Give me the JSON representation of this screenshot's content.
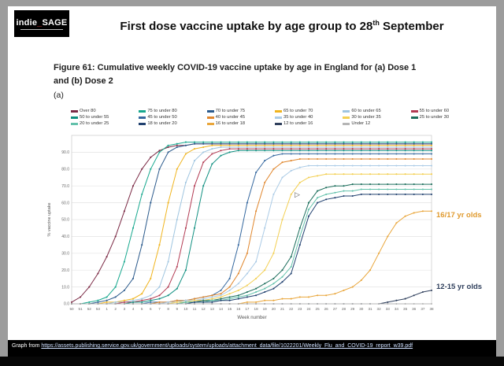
{
  "logo": {
    "part1": "indie",
    "underscore": "_",
    "part2": "SAGE"
  },
  "header": {
    "title_pre": "First dose vaccine uptake by age group to 28",
    "title_sup": "th",
    "title_post": " September"
  },
  "figure": {
    "caption": "Figure 61: Cumulative weekly COVID-19 vaccine uptake by age in England for (a) Dose 1 and (b) Dose 2",
    "panel_label": "(a)"
  },
  "annotations": {
    "a1617": {
      "text": "16/17 yr olds",
      "color": "#e09a2e"
    },
    "a1215": {
      "text": "12-15 yr olds",
      "color": "#2f3f5c"
    }
  },
  "footer": {
    "prefix": "Graph from ",
    "link": "https://assets.publishing.service.gov.uk/government/uploads/system/uploads/attachment_data/file/1022201/Weekly_Flu_and_COVID-19_report_w39.pdf"
  },
  "chart_data": {
    "type": "line",
    "title": "Cumulative weekly COVID-19 vaccine uptake by age in England, Dose 1",
    "xlabel": "Week number",
    "ylabel": "% vaccine uptake",
    "ylim": [
      0,
      100
    ],
    "grid": true,
    "legend_position": "top",
    "ytick_labels": [
      "0.0",
      "10.0",
      "20.0",
      "30.0",
      "40.0",
      "50.0",
      "60.0",
      "70.0",
      "80.0",
      "90.0"
    ],
    "x": [
      "50",
      "51",
      "52",
      "53",
      "1",
      "2",
      "3",
      "4",
      "5",
      "6",
      "7",
      "8",
      "9",
      "10",
      "11",
      "12",
      "13",
      "14",
      "15",
      "16",
      "17",
      "18",
      "19",
      "20",
      "21",
      "22",
      "23",
      "24",
      "25",
      "26",
      "27",
      "28",
      "29",
      "30",
      "31",
      "32",
      "33",
      "34",
      "35",
      "36",
      "37",
      "38"
    ],
    "series": [
      {
        "name": "Over 80",
        "color": "#7b2a45",
        "values": [
          1,
          4,
          10,
          18,
          28,
          40,
          55,
          70,
          80,
          87,
          91,
          93,
          94,
          94,
          95,
          95,
          95,
          95,
          95,
          95,
          95,
          95,
          95,
          95,
          95,
          95,
          95,
          95,
          95,
          95,
          95,
          95,
          95,
          95,
          95,
          95,
          95,
          95,
          95,
          95,
          95,
          95
        ]
      },
      {
        "name": "75 to under 80",
        "color": "#17a88e",
        "values": [
          0,
          0,
          1,
          2,
          4,
          10,
          25,
          45,
          65,
          80,
          90,
          94,
          95,
          96,
          96,
          96,
          96,
          96,
          96,
          96,
          96,
          96,
          96,
          96,
          96,
          96,
          96,
          96,
          96,
          96,
          96,
          96,
          96,
          96,
          96,
          96,
          96,
          96,
          96,
          96,
          96,
          96
        ]
      },
      {
        "name": "70 to under 75",
        "color": "#2b5a8c",
        "values": [
          0,
          0,
          0,
          1,
          2,
          4,
          8,
          15,
          35,
          60,
          80,
          90,
          93,
          94,
          95,
          95,
          95,
          95,
          95,
          95,
          95,
          95,
          95,
          95,
          95,
          95,
          95,
          95,
          95,
          95,
          95,
          95,
          95,
          95,
          95,
          95,
          95,
          95,
          95,
          95,
          95,
          95
        ]
      },
      {
        "name": "65 to under 70",
        "color": "#f0b41e",
        "values": [
          0,
          0,
          0,
          0,
          1,
          1,
          2,
          3,
          6,
          15,
          35,
          60,
          80,
          89,
          92,
          93,
          94,
          94,
          94,
          94,
          94,
          94,
          94,
          94,
          94,
          94,
          94,
          94,
          94,
          94,
          94,
          94,
          94,
          94,
          94,
          94,
          94,
          94,
          94,
          94,
          94,
          94
        ]
      },
      {
        "name": "60 to under 65",
        "color": "#9fc5e0",
        "values": [
          0,
          0,
          0,
          0,
          0,
          1,
          1,
          2,
          3,
          5,
          10,
          25,
          50,
          72,
          85,
          90,
          92,
          93,
          93,
          93,
          93,
          93,
          93,
          93,
          93,
          93,
          93,
          93,
          93,
          93,
          93,
          93,
          93,
          93,
          93,
          93,
          93,
          93,
          93,
          93,
          93,
          93
        ]
      },
      {
        "name": "55 to under 60",
        "color": "#b23a52",
        "values": [
          0,
          0,
          0,
          0,
          0,
          0,
          1,
          1,
          2,
          3,
          5,
          10,
          22,
          45,
          70,
          84,
          89,
          91,
          92,
          92,
          92,
          92,
          92,
          92,
          92,
          92,
          92,
          92,
          92,
          92,
          92,
          92,
          92,
          92,
          92,
          92,
          92,
          92,
          92,
          92,
          92,
          92
        ]
      },
      {
        "name": "50 to under 55",
        "color": "#0f8f80",
        "values": [
          0,
          0,
          0,
          0,
          0,
          0,
          0,
          1,
          1,
          2,
          3,
          5,
          9,
          20,
          45,
          70,
          83,
          88,
          90,
          91,
          91,
          91,
          91,
          91,
          91,
          91,
          91,
          91,
          91,
          91,
          91,
          91,
          91,
          91,
          91,
          91,
          91,
          91,
          91,
          91,
          91,
          91
        ]
      },
      {
        "name": "45 to under 50",
        "color": "#35689f",
        "values": [
          0,
          0,
          0,
          0,
          0,
          0,
          0,
          0,
          0,
          1,
          1,
          1,
          2,
          2,
          3,
          4,
          5,
          8,
          15,
          35,
          60,
          78,
          85,
          88,
          89,
          89,
          89,
          89,
          89,
          89,
          89,
          89,
          89,
          89,
          89,
          89,
          89,
          89,
          89,
          89,
          89,
          89
        ]
      },
      {
        "name": "40 to under 45",
        "color": "#e0862c",
        "values": [
          0,
          0,
          0,
          0,
          0,
          0,
          0,
          0,
          0,
          0,
          1,
          1,
          2,
          2,
          3,
          4,
          5,
          6,
          10,
          18,
          30,
          55,
          72,
          80,
          84,
          85,
          86,
          86,
          86,
          86,
          86,
          86,
          86,
          86,
          86,
          86,
          86,
          86,
          86,
          86,
          86,
          86
        ]
      },
      {
        "name": "35 to under 40",
        "color": "#abcbe6",
        "values": [
          0,
          0,
          0,
          0,
          0,
          0,
          0,
          0,
          0,
          0,
          0,
          1,
          1,
          2,
          2,
          3,
          4,
          5,
          8,
          12,
          18,
          25,
          45,
          65,
          75,
          79,
          81,
          82,
          82,
          82,
          82,
          82,
          82,
          82,
          82,
          82,
          82,
          82,
          82,
          82,
          82,
          82
        ]
      },
      {
        "name": "30 to under 35",
        "color": "#f3cf52",
        "values": [
          0,
          0,
          0,
          0,
          0,
          0,
          0,
          0,
          0,
          0,
          0,
          0,
          1,
          1,
          2,
          2,
          3,
          4,
          6,
          8,
          11,
          15,
          20,
          30,
          50,
          65,
          72,
          75,
          76,
          77,
          77,
          77,
          77,
          77,
          77,
          77,
          77,
          77,
          77,
          77,
          77,
          77
        ]
      },
      {
        "name": "25 to under 30",
        "color": "#1c6e5c",
        "values": [
          0,
          0,
          0,
          0,
          0,
          0,
          0,
          0,
          0,
          0,
          0,
          0,
          0,
          1,
          1,
          2,
          2,
          3,
          4,
          5,
          7,
          9,
          12,
          15,
          20,
          28,
          45,
          60,
          67,
          69,
          70,
          70,
          71,
          71,
          71,
          71,
          71,
          71,
          71,
          71,
          71,
          71
        ]
      },
      {
        "name": "20 to under 25",
        "color": "#63c1ab",
        "values": [
          0,
          0,
          0,
          0,
          0,
          0,
          0,
          0,
          0,
          0,
          0,
          0,
          0,
          1,
          1,
          1,
          2,
          2,
          3,
          4,
          5,
          7,
          9,
          12,
          16,
          22,
          40,
          56,
          63,
          65,
          66,
          67,
          67,
          68,
          68,
          68,
          68,
          68,
          68,
          68,
          68,
          68
        ]
      },
      {
        "name": "18 to under 20",
        "color": "#20406f",
        "values": [
          0,
          0,
          0,
          0,
          0,
          0,
          0,
          0,
          0,
          0,
          0,
          0,
          0,
          0,
          1,
          1,
          1,
          2,
          2,
          3,
          4,
          5,
          7,
          9,
          13,
          18,
          35,
          52,
          60,
          62,
          63,
          64,
          64,
          65,
          65,
          65,
          65,
          65,
          65,
          65,
          65,
          65
        ]
      },
      {
        "name": "16 to under 18",
        "color": "#e9a63b",
        "values": [
          0,
          0,
          0,
          0,
          0,
          0,
          0,
          0,
          0,
          0,
          0,
          0,
          0,
          0,
          0,
          0,
          0,
          0,
          0,
          0,
          1,
          1,
          2,
          2,
          3,
          3,
          4,
          4,
          5,
          5,
          6,
          8,
          10,
          14,
          20,
          30,
          40,
          48,
          52,
          54,
          55,
          55
        ]
      },
      {
        "name": "12 to under 16",
        "color": "#2f3f5c",
        "values": [
          0,
          0,
          0,
          0,
          0,
          0,
          0,
          0,
          0,
          0,
          0,
          0,
          0,
          0,
          0,
          0,
          0,
          0,
          0,
          0,
          0,
          0,
          0,
          0,
          0,
          0,
          0,
          0,
          0,
          0,
          0,
          0,
          0,
          0,
          0,
          0,
          1,
          2,
          3,
          5,
          7,
          8
        ]
      },
      {
        "name": "Under 12",
        "color": "#b5b5b5",
        "values": [
          0,
          0,
          0,
          0,
          0,
          0,
          0,
          0,
          0,
          0,
          0,
          0,
          0,
          0,
          0,
          0,
          0,
          0,
          0,
          0,
          0,
          0,
          0,
          0,
          0,
          0,
          0,
          0,
          0,
          0,
          0,
          0,
          0,
          0,
          0,
          0,
          0,
          0,
          0,
          0,
          0,
          0
        ]
      }
    ]
  }
}
